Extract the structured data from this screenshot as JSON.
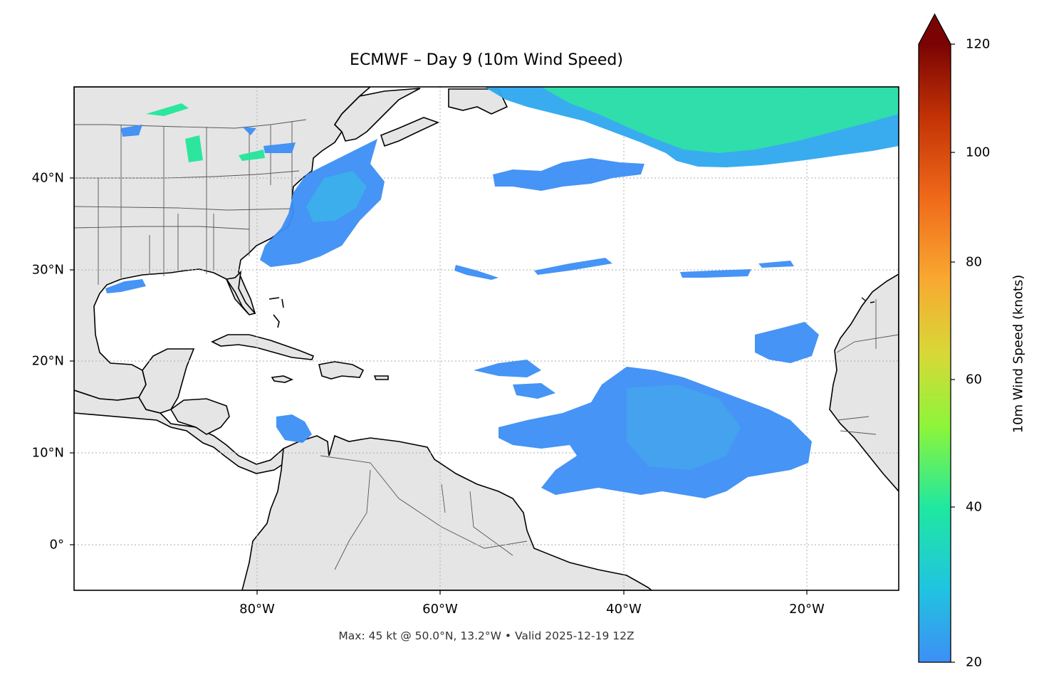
{
  "map": {
    "title": "ECMWF – Day 9 (10m Wind Speed)",
    "footnote": "Max: 45 kt @ 50.0°N, 13.2°W • Valid 2025-12-19 12Z",
    "lat_labels": [
      "40°N",
      "30°N",
      "20°N",
      "10°N",
      "0°"
    ],
    "lon_labels": [
      "80°W",
      "60°W",
      "40°W",
      "20°W"
    ],
    "extent": {
      "lon": [
        -100,
        -10
      ],
      "lat": [
        -5,
        50
      ]
    }
  },
  "colorbar": {
    "label": "10m Wind Speed (knots)",
    "ticks": [
      "20",
      "40",
      "60",
      "80",
      "100",
      "120"
    ],
    "range": [
      20,
      120
    ],
    "extend": "max",
    "colors": [
      "#3d8ff5",
      "#20c4e0",
      "#1fe8a0",
      "#8cf53a",
      "#d8d838",
      "#f9a830",
      "#f06a1a",
      "#c43306",
      "#7a0403"
    ]
  },
  "styles": {
    "land": "#e5e5e5",
    "ocean": "#ffffff",
    "coast": "#000000",
    "borders": "#555555",
    "wind_light": "#3d8ff5",
    "wind_mid": "#2fa8f0",
    "wind_strong": "#22e69a"
  }
}
